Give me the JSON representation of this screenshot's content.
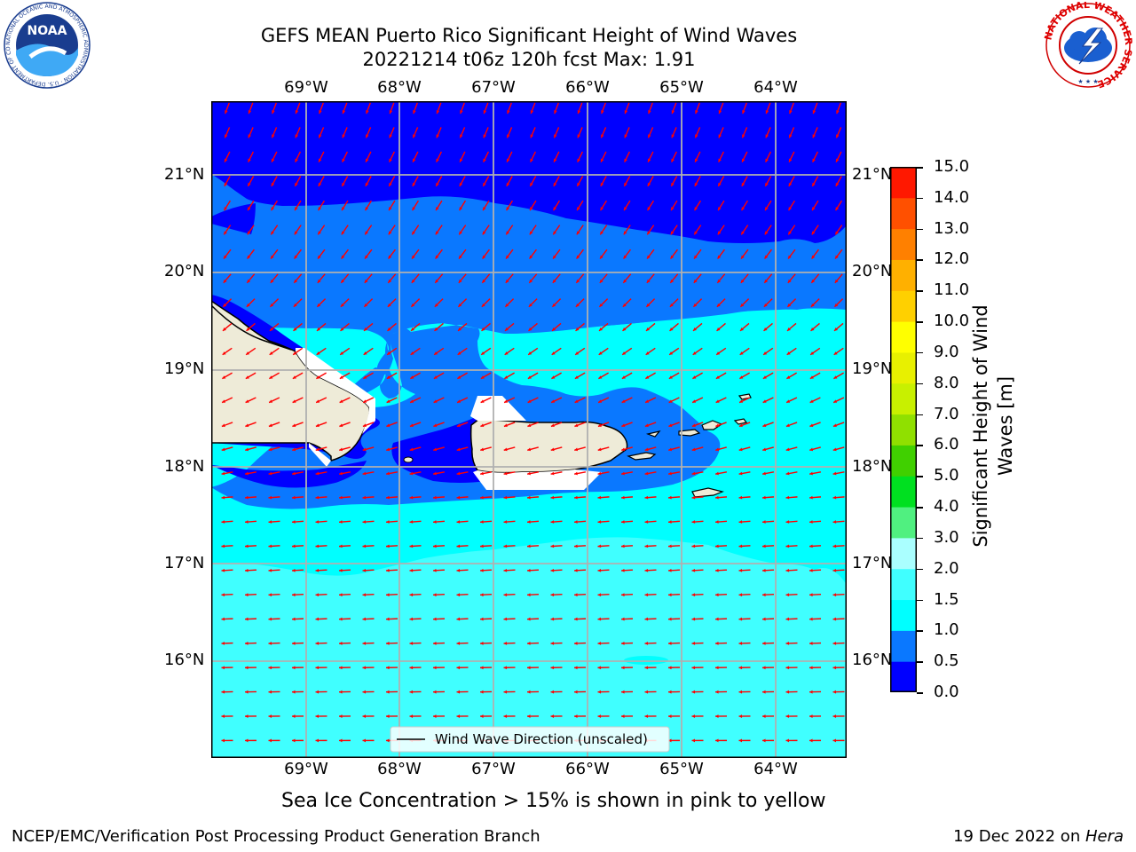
{
  "title": {
    "line1": "GEFS MEAN Puerto Rico Significant Height of Wind Waves",
    "line2": "20221214 t06z 120h fcst   Max: 1.91"
  },
  "map": {
    "lon_labels": [
      "69°W",
      "68°W",
      "67°W",
      "66°W",
      "65°W",
      "64°W"
    ],
    "lat_labels": [
      "21°N",
      "20°N",
      "19°N",
      "18°N",
      "17°N",
      "16°N"
    ],
    "legend_text": "Wind Wave Direction (unscaled)",
    "colors": {
      "band_0_0p5": "#0000ff",
      "band_0p5_1": "#0a78ff",
      "band_1_1p5": "#00ffff",
      "band_1p5_2": "#40ffff",
      "land": "#eeebd8",
      "arrow": "#ff0000",
      "grid": "#b0b0b0"
    }
  },
  "colorbar": {
    "ticks": [
      "15.0",
      "14.0",
      "13.0",
      "12.0",
      "11.0",
      "10.0",
      "9.0",
      "8.0",
      "7.0",
      "6.0",
      "5.0",
      "4.0",
      "3.0",
      "2.0",
      "1.5",
      "1.0",
      "0.5",
      "0.0"
    ],
    "label_line1": "Significant Height of Wind",
    "label_line2": "Waves [m]",
    "colors": [
      "#0000ff",
      "#0a78ff",
      "#00ffff",
      "#40ffff",
      "#80ffff",
      "#aaffff",
      "#40f080",
      "#00d000",
      "#44e000",
      "#90f000",
      "#c8ff00",
      "#e0f000",
      "#ffff00",
      "#ffe000",
      "#ffb000",
      "#ff8000",
      "#ff5000",
      "#ff2000",
      "#ff0000"
    ]
  },
  "subtitle": "Sea Ice Concentration > 15% is shown in pink to yellow",
  "footer": {
    "left": "NCEP/EMC/Verification Post Processing Product Generation Branch",
    "right_date": "19 Dec 2022 on ",
    "right_machine": "Hera"
  },
  "logos": {
    "noaa_text": "NOAA",
    "noaa_ring_text": "NATIONAL OCEANIC AND ATMOSPHERIC ADMINISTRATION · U.S. DEPARTMENT OF COMMERCE",
    "nws_ring_text": "NATIONAL WEATHER SERVICE"
  }
}
